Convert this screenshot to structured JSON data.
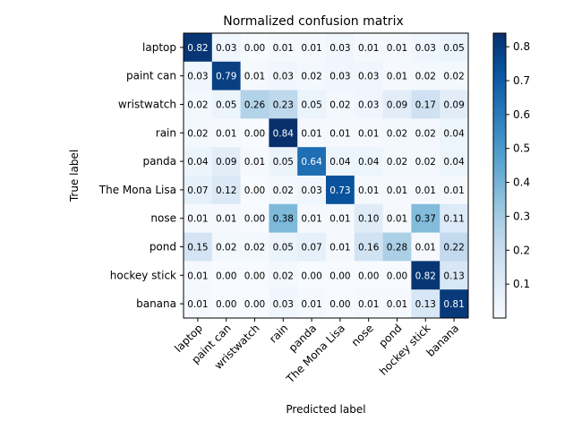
{
  "chart_data": {
    "type": "heatmap",
    "title": "Normalized confusion matrix",
    "xlabel": "Predicted label",
    "ylabel": "True label",
    "labels": [
      "laptop",
      "paint can",
      "wristwatch",
      "rain",
      "panda",
      "The Mona Lisa",
      "nose",
      "pond",
      "hockey stick",
      "banana"
    ],
    "values": [
      [
        0.82,
        0.03,
        0.0,
        0.01,
        0.01,
        0.03,
        0.01,
        0.01,
        0.03,
        0.05
      ],
      [
        0.03,
        0.79,
        0.01,
        0.03,
        0.02,
        0.03,
        0.03,
        0.01,
        0.02,
        0.02
      ],
      [
        0.02,
        0.05,
        0.26,
        0.23,
        0.05,
        0.02,
        0.03,
        0.09,
        0.17,
        0.09
      ],
      [
        0.02,
        0.01,
        0.0,
        0.84,
        0.01,
        0.01,
        0.01,
        0.02,
        0.02,
        0.04
      ],
      [
        0.04,
        0.09,
        0.01,
        0.05,
        0.64,
        0.04,
        0.04,
        0.02,
        0.02,
        0.04
      ],
      [
        0.07,
        0.12,
        0.0,
        0.02,
        0.03,
        0.73,
        0.01,
        0.01,
        0.01,
        0.01
      ],
      [
        0.01,
        0.01,
        0.0,
        0.38,
        0.01,
        0.01,
        0.1,
        0.01,
        0.37,
        0.11
      ],
      [
        0.15,
        0.02,
        0.02,
        0.05,
        0.07,
        0.01,
        0.16,
        0.28,
        0.01,
        0.22
      ],
      [
        0.01,
        0.0,
        0.0,
        0.02,
        0.0,
        0.0,
        0.0,
        0.0,
        0.82,
        0.13
      ],
      [
        0.01,
        0.0,
        0.0,
        0.03,
        0.01,
        0.0,
        0.01,
        0.01,
        0.13,
        0.81
      ]
    ],
    "colormap": "Blues",
    "colorbar": {
      "ticks": [
        0.1,
        0.2,
        0.3,
        0.4,
        0.5,
        0.6,
        0.7,
        0.8
      ],
      "range": [
        0.0,
        0.84
      ]
    },
    "grid": false
  }
}
